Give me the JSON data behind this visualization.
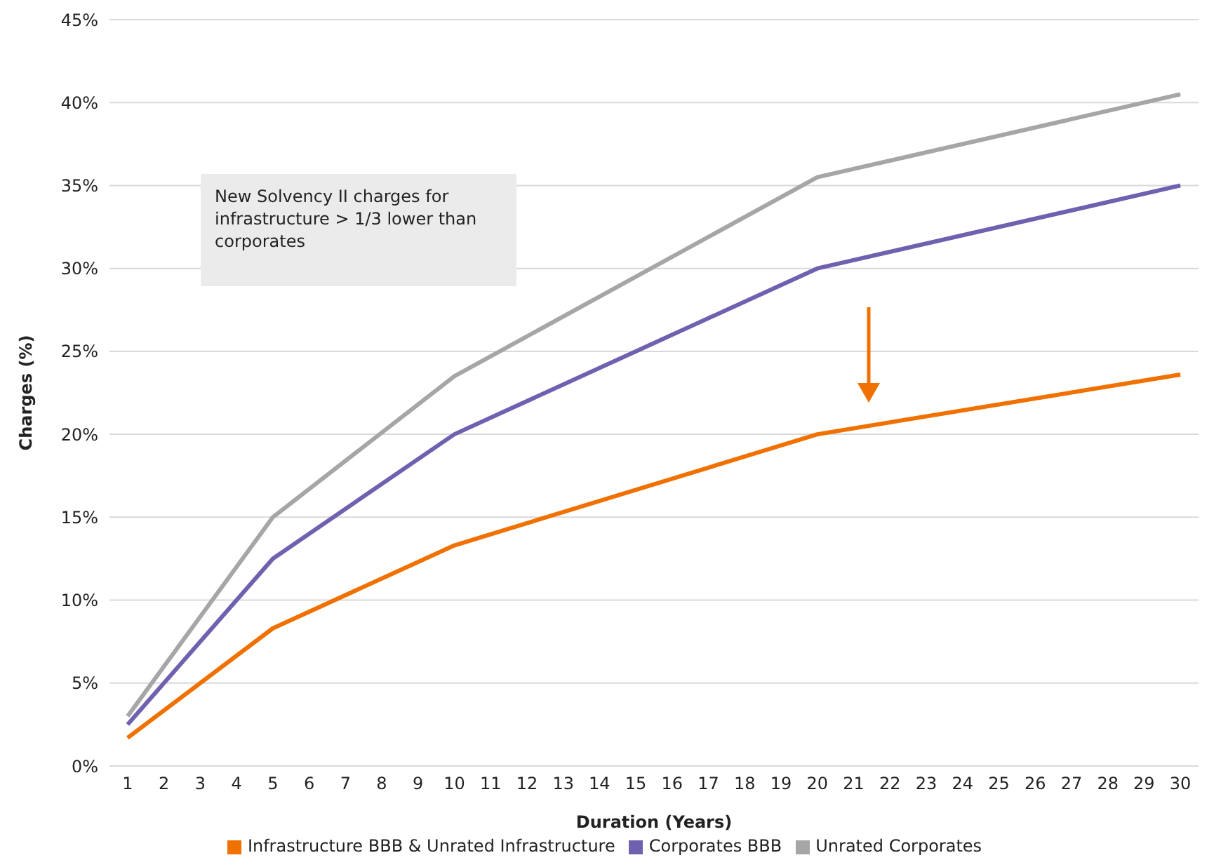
{
  "chart_data": {
    "type": "line",
    "xlabel": "Duration (Years)",
    "ylabel": "Charges (%)",
    "x": [
      1,
      5,
      10,
      20,
      30
    ],
    "series": [
      {
        "name": "Infrastructure BBB & Unrated Infrastructure",
        "color": "#f07000",
        "values": [
          1.7,
          8.3,
          13.3,
          20,
          23.6
        ]
      },
      {
        "name": "Corporates BBB",
        "color": "#7060b0",
        "values": [
          2.5,
          12.5,
          20,
          30,
          35
        ]
      },
      {
        "name": "Unrated Corporates",
        "color": "#a6a6a6",
        "values": [
          3,
          15,
          23.5,
          35.5,
          40.5
        ]
      }
    ],
    "xlim": [
      0.5,
      30.5
    ],
    "xticks": [
      1,
      2,
      3,
      4,
      5,
      6,
      7,
      8,
      9,
      10,
      11,
      12,
      13,
      14,
      15,
      16,
      17,
      18,
      19,
      20,
      21,
      22,
      23,
      24,
      25,
      26,
      27,
      28,
      29,
      30
    ],
    "ylim": [
      0,
      45
    ],
    "yticks": [
      {
        "value": 0,
        "label": "0%"
      },
      {
        "value": 5,
        "label": "5%"
      },
      {
        "value": 10,
        "label": "10%"
      },
      {
        "value": 15,
        "label": "15%"
      },
      {
        "value": 20,
        "label": "20%"
      },
      {
        "value": 25,
        "label": "25%"
      },
      {
        "value": 30,
        "label": "30%"
      },
      {
        "value": 35,
        "label": "35%"
      },
      {
        "value": 40,
        "label": "40%"
      },
      {
        "value": 45,
        "label": "45%"
      }
    ],
    "grid": "y",
    "legend": "bottom",
    "annotations": [
      "New Solvency II charges for infrastructure > 1/3 lower than corporates"
    ]
  }
}
